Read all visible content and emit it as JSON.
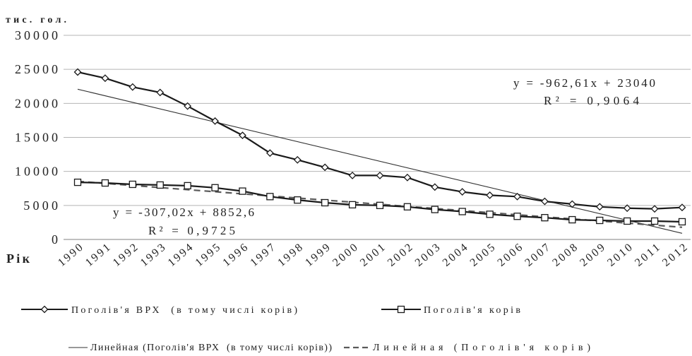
{
  "chart_data": {
    "type": "line",
    "ylabel": "тис. гол.",
    "xlabel": "Рік",
    "ylim": [
      0,
      30000
    ],
    "yticks": [
      0,
      5000,
      10000,
      15000,
      20000,
      25000,
      30000
    ],
    "grid": "horizontal",
    "legend_position": "bottom",
    "categories": [
      "1990",
      "1991",
      "1992",
      "1993",
      "1994",
      "1995",
      "1996",
      "1997",
      "1998",
      "1999",
      "2000",
      "2001",
      "2002",
      "2003",
      "2004",
      "2005",
      "2006",
      "2007",
      "2008",
      "2009",
      "2010",
      "2011",
      "2012"
    ],
    "series": [
      {
        "name": "Поголів'я ВРХ  (в тому числі корів)",
        "marker": "diamond",
        "color": "#1a1a1a",
        "values": [
          24600,
          23700,
          22400,
          21600,
          19600,
          17400,
          15300,
          12700,
          11700,
          10600,
          9400,
          9400,
          9100,
          7700,
          7000,
          6500,
          6300,
          5600,
          5200,
          4800,
          4600,
          4500,
          4700
        ]
      },
      {
        "name": "Поголів'я корів",
        "marker": "square",
        "color": "#1a1a1a",
        "values": [
          8400,
          8300,
          8100,
          8000,
          7900,
          7600,
          7100,
          6300,
          5800,
          5400,
          5100,
          5000,
          4800,
          4400,
          4100,
          3700,
          3400,
          3200,
          2900,
          2800,
          2700,
          2700,
          2600
        ]
      }
    ],
    "trendlines": [
      {
        "name": "Линейная (Поголів'я ВРХ  (в тому числі корів))",
        "line_style": "solid",
        "color": "#333333",
        "slope": -962.61,
        "intercept": 23040,
        "equation": "y = -962,61x + 23040",
        "r2": "R² = 0,9064"
      },
      {
        "name": "Линейная (Поголів'я корів)",
        "line_style": "dashed",
        "color": "#5a5a5a",
        "slope": -307.02,
        "intercept": 8852.6,
        "equation": "y = -307,02x + 8852,6",
        "r2": "R² = 0,9725"
      }
    ]
  }
}
